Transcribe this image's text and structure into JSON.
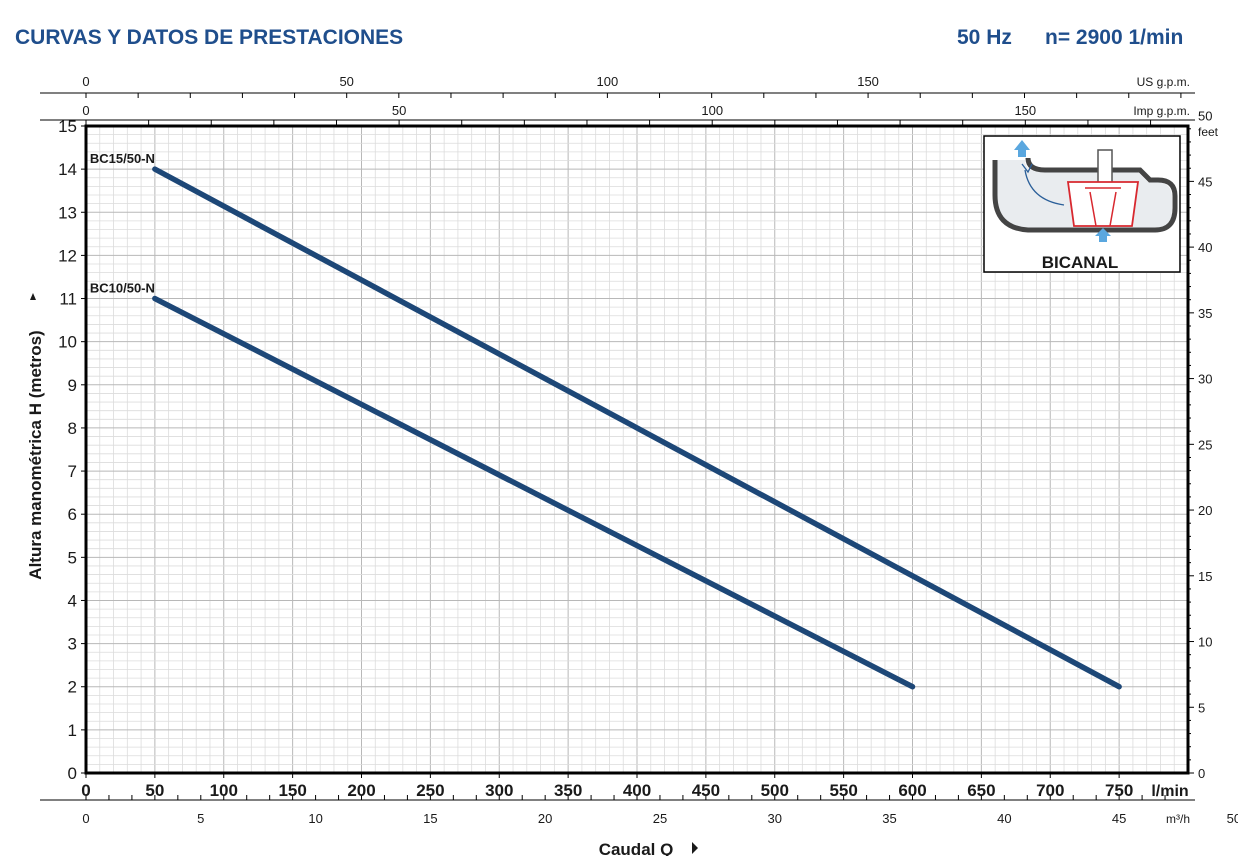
{
  "header": {
    "title": "CURVAS Y DATOS DE PRESTACIONES",
    "freq": "50 Hz",
    "speed": "n= 2900  1/min"
  },
  "colors": {
    "header": "#1f4e8c",
    "curve": "#1d4777",
    "grid": "#c9c9c9",
    "frame": "#000000",
    "impeller": "#d8282f"
  },
  "chart_data": {
    "type": "line",
    "xlabel": "Caudal Q",
    "ylabel": "Altura manométrica H (metros)",
    "x_unit": "l/min",
    "xlim": [
      0,
      800
    ],
    "ylim": [
      0,
      15
    ],
    "x_ticks": [
      0,
      50,
      100,
      150,
      200,
      250,
      300,
      350,
      400,
      450,
      500,
      550,
      600,
      650,
      700,
      750
    ],
    "y_ticks": [
      0,
      1,
      2,
      3,
      4,
      5,
      6,
      7,
      8,
      9,
      10,
      11,
      12,
      13,
      14,
      15
    ],
    "grid": true,
    "series": [
      {
        "name": "BC15/50-N",
        "x": [
          50,
          750
        ],
        "y": [
          14,
          2
        ]
      },
      {
        "name": "BC10/50-N",
        "x": [
          50,
          600
        ],
        "y": [
          11,
          2
        ]
      }
    ],
    "secondary_axes": {
      "us_gpm": {
        "unit": "US g.p.m.",
        "ticks": [
          0,
          50,
          100,
          150
        ]
      },
      "imp_gpm": {
        "unit": "Imp g.p.m.",
        "ticks": [
          0,
          50,
          100,
          150
        ]
      },
      "m3h": {
        "unit": "m³/h",
        "ticks": [
          0,
          5,
          10,
          15,
          20,
          25,
          30,
          35,
          40,
          45,
          50
        ]
      },
      "feet": {
        "unit": "feet",
        "ticks": [
          0,
          5,
          10,
          15,
          20,
          25,
          30,
          35,
          40,
          45,
          50
        ]
      }
    }
  },
  "inset": {
    "label": "BICANAL"
  }
}
